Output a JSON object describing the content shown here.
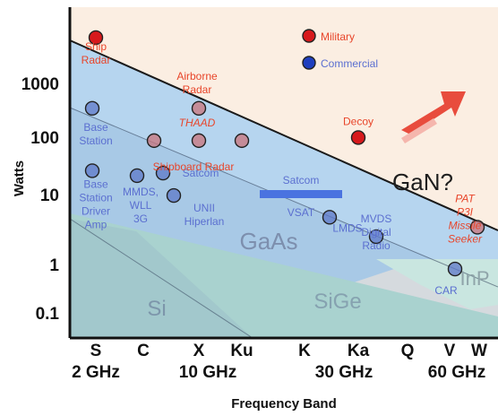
{
  "chart_data": {
    "type": "scatter",
    "title": "",
    "xlabel": "Frequency Band",
    "ylabel": "Watts",
    "yscale": "log",
    "ylim": [
      0.05,
      20000
    ],
    "y_ticks": [
      "1000",
      "100",
      "10",
      "1",
      "0.1"
    ],
    "bands": [
      "S",
      "C",
      "X",
      "Ku",
      "K",
      "Ka",
      "Q",
      "V",
      "W"
    ],
    "frequencies": [
      "2 GHz",
      "10 GHz",
      "30 GHz",
      "60 GHz"
    ],
    "colors": {
      "background": "#fbeee2",
      "gaas": "#b6d5ef",
      "inp": "#c9e6e0",
      "sige": "#a9d2cf",
      "si": "#a2c8cc",
      "military": "#d7191c",
      "commercial": "#1f3fbf",
      "military_text": "#e8452a",
      "commercial_text": "#5b6fd0",
      "satcom_bar": "#4a73e0",
      "arrow": "#e84c3d"
    },
    "legend": {
      "position": "top-center",
      "military": "Military",
      "commercial": "Commercial"
    },
    "regions": [
      {
        "name": "GaAs"
      },
      {
        "name": "GaN?"
      },
      {
        "name": "InP"
      },
      {
        "name": "SiGe"
      },
      {
        "name": "Si"
      }
    ],
    "points": [
      {
        "id": "ship-radar",
        "category": "military",
        "band": "S",
        "watts": 5000,
        "label": "Ship\nRadar"
      },
      {
        "id": "airborne-radar",
        "category": "military",
        "band": "X",
        "watts": 280,
        "label": "Airborne\nRadar"
      },
      {
        "id": "thaad-1",
        "category": "military",
        "band": "C",
        "watts": 75,
        "label": "THAAD"
      },
      {
        "id": "thaad-2",
        "category": "military",
        "band": "X",
        "watts": 75,
        "label": ""
      },
      {
        "id": "thaad-3",
        "category": "military",
        "band": "Ku",
        "watts": 75,
        "label": ""
      },
      {
        "id": "decoy",
        "category": "military",
        "band": "Ka",
        "watts": 85,
        "label": "Decoy"
      },
      {
        "id": "missile-seeker",
        "category": "military",
        "band": "W",
        "watts": 2.2,
        "label": "PAT\nP3I\nMissile\nSeeker"
      },
      {
        "id": "base-station-1",
        "category": "commercial",
        "band": "S",
        "watts": 280,
        "label": "Base\nStation"
      },
      {
        "id": "base-station-2",
        "category": "commercial",
        "band": "S",
        "watts": 22,
        "label": "Base\nStation\nDriver\nAmp"
      },
      {
        "id": "mmds",
        "category": "commercial",
        "band": "C",
        "watts": 18,
        "label": "MMDS,\nWLL\n3G"
      },
      {
        "id": "satcom",
        "category": "commercial",
        "band": "C",
        "watts": 20,
        "label": "Satcom"
      },
      {
        "id": "unii",
        "category": "commercial",
        "band": "X",
        "watts": 8,
        "label": "UNII\nHiperlan"
      },
      {
        "id": "lmds",
        "category": "commercial",
        "band": "Ka",
        "watts": 3.3,
        "label": "LMDS"
      },
      {
        "id": "mvds",
        "category": "commercial",
        "band": "Q",
        "watts": 1.5,
        "label": "MVDS\nDigital\nRadio"
      },
      {
        "id": "car",
        "category": "commercial",
        "band": "V",
        "watts": 0.4,
        "label": "CAR"
      }
    ],
    "annotations": {
      "shipboard_radar": "Shipboard Radar",
      "satcom_vsat": "Satcom\nVSAT"
    }
  }
}
